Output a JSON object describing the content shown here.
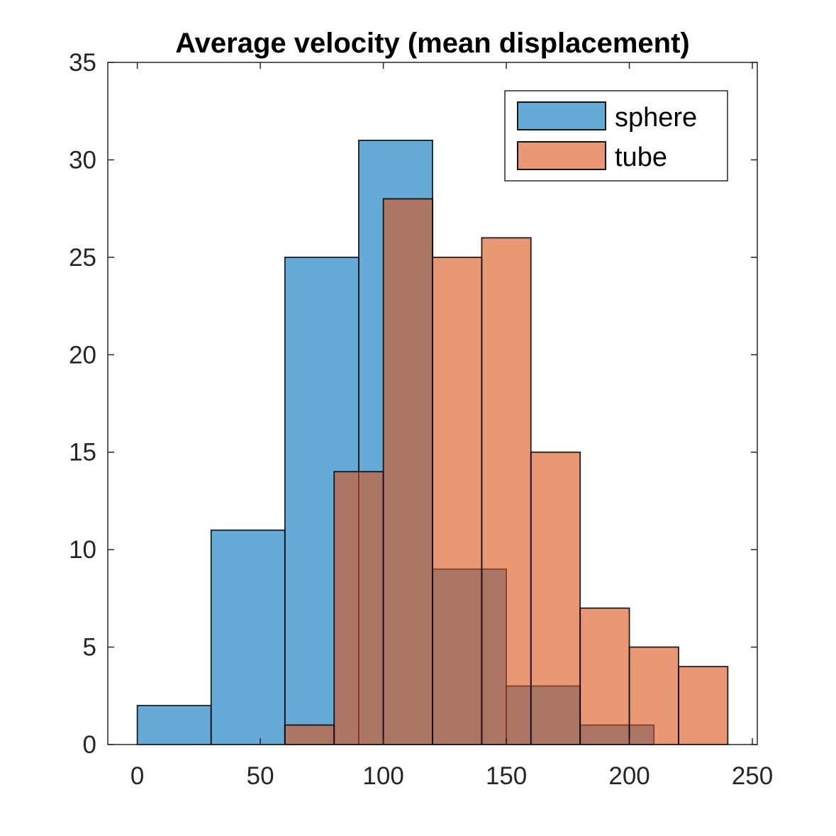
{
  "chart_data": {
    "type": "histogram",
    "title": "Average velocity (mean displacement)",
    "xlabel": "",
    "ylabel": "",
    "xlim": [
      -12,
      252
    ],
    "ylim": [
      0,
      35
    ],
    "xticks": [
      0,
      50,
      100,
      150,
      200,
      250
    ],
    "yticks": [
      0,
      5,
      10,
      15,
      20,
      25,
      30,
      35
    ],
    "grid": false,
    "legend_location": "top-right",
    "series": [
      {
        "name": "sphere",
        "color": "#0072BD",
        "face_alpha": 0.6,
        "bins": [
          {
            "x0": 0,
            "x1": 30,
            "count": 2
          },
          {
            "x0": 30,
            "x1": 60,
            "count": 11
          },
          {
            "x0": 60,
            "x1": 90,
            "count": 25
          },
          {
            "x0": 90,
            "x1": 120,
            "count": 31
          },
          {
            "x0": 120,
            "x1": 150,
            "count": 9
          },
          {
            "x0": 150,
            "x1": 180,
            "count": 3
          },
          {
            "x0": 180,
            "x1": 210,
            "count": 1
          }
        ]
      },
      {
        "name": "tube",
        "color": "#D95319",
        "face_alpha": 0.6,
        "bins": [
          {
            "x0": 60,
            "x1": 80,
            "count": 1
          },
          {
            "x0": 80,
            "x1": 100,
            "count": 14
          },
          {
            "x0": 100,
            "x1": 120,
            "count": 28
          },
          {
            "x0": 120,
            "x1": 140,
            "count": 25
          },
          {
            "x0": 140,
            "x1": 160,
            "count": 26
          },
          {
            "x0": 160,
            "x1": 180,
            "count": 15
          },
          {
            "x0": 180,
            "x1": 200,
            "count": 7
          },
          {
            "x0": 200,
            "x1": 220,
            "count": 5
          },
          {
            "x0": 220,
            "x1": 240,
            "count": 4
          }
        ]
      }
    ]
  }
}
